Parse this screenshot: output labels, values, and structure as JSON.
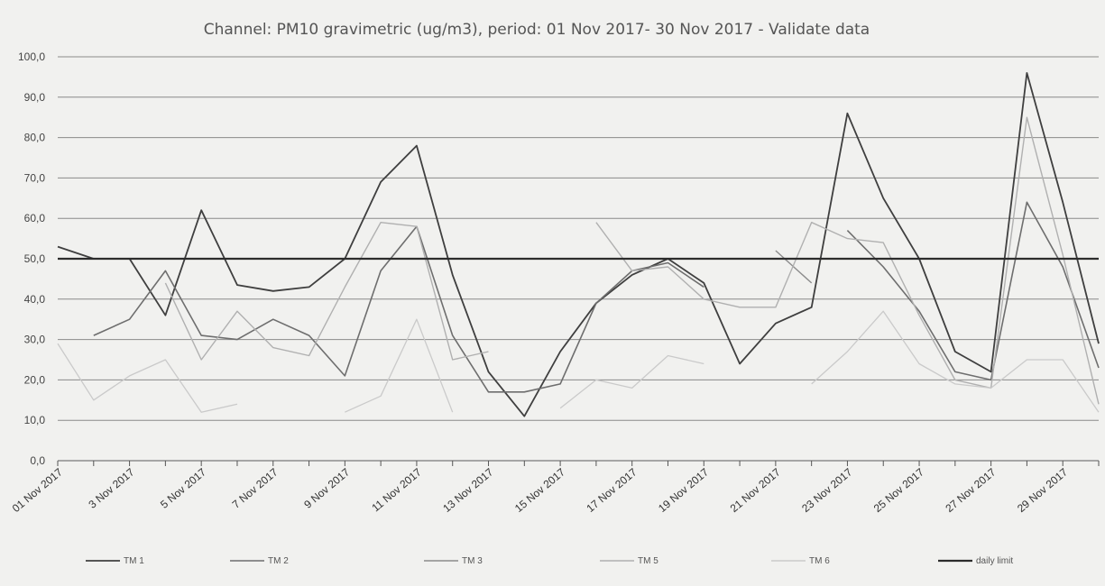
{
  "chart_data": {
    "type": "line",
    "title": "Channel: PM10 gravimetric (ug/m3), period: 01 Nov 2017- 30 Nov 2017 - Validate data",
    "xlabel": "",
    "ylabel": "",
    "ylim": [
      0,
      100
    ],
    "yticks": [
      "0,0",
      "10,0",
      "20,0",
      "30,0",
      "40,0",
      "50,0",
      "60,0",
      "70,0",
      "80,0",
      "90,0",
      "100,0"
    ],
    "x": [
      "01 Nov 2017",
      "02 Nov 2017",
      "03 Nov 2017",
      "04 Nov 2017",
      "05 Nov 2017",
      "06 Nov 2017",
      "07 Nov 2017",
      "08 Nov 2017",
      "09 Nov 2017",
      "10 Nov 2017",
      "11 Nov 2017",
      "12 Nov 2017",
      "13 Nov 2017",
      "14 Nov 2017",
      "15 Nov 2017",
      "16 Nov 2017",
      "17 Nov 2017",
      "18 Nov 2017",
      "19 Nov 2017",
      "20 Nov 2017",
      "21 Nov 2017",
      "22 Nov 2017",
      "23 Nov 2017",
      "24 Nov 2017",
      "25 Nov 2017",
      "26 Nov 2017",
      "27 Nov 2017",
      "28 Nov 2017",
      "29 Nov 2017",
      "30 Nov 2017"
    ],
    "xtick_labels": [
      "01 Nov 2017",
      "3 Nov 2017",
      "5 Nov 2017",
      "7 Nov 2017",
      "9 Nov 2017",
      "11 Nov 2017",
      "13 Nov 2017",
      "15 Nov 2017",
      "17 Nov 2017",
      "19 Nov 2017",
      "21 Nov 2017",
      "23 Nov 2017",
      "25 Nov 2017",
      "27 Nov 2017",
      "29 Nov 2017"
    ],
    "grid": true,
    "legend_position": "bottom",
    "series": [
      {
        "name": "TM 1",
        "color": "#3f3f3f",
        "width": 1.8,
        "values": [
          53,
          50,
          50,
          36,
          62,
          43.5,
          42,
          43,
          50,
          69,
          78,
          46,
          22,
          11,
          27,
          39,
          46,
          50,
          44,
          24,
          34,
          38,
          86,
          65,
          50,
          27,
          22,
          96,
          64,
          29
        ]
      },
      {
        "name": "TM 2",
        "color": "#6e6e6e",
        "width": 1.6,
        "values": [
          null,
          31,
          35,
          47,
          31,
          30,
          35,
          31,
          21,
          47,
          58,
          31,
          17,
          17,
          19,
          39,
          47,
          49,
          43,
          null,
          null,
          null,
          57,
          48,
          37,
          22,
          20,
          64,
          48,
          23
        ]
      },
      {
        "name": "TM 3",
        "color": "#8c8c8c",
        "width": 1.4,
        "values": [
          null,
          null,
          null,
          null,
          null,
          null,
          null,
          null,
          null,
          null,
          null,
          null,
          null,
          null,
          null,
          null,
          null,
          null,
          null,
          null,
          52,
          44,
          null,
          null,
          null,
          null,
          null,
          null,
          null,
          null
        ]
      },
      {
        "name": "TM 5",
        "color": "#b0b0b0",
        "width": 1.4,
        "values": [
          null,
          null,
          null,
          44,
          25,
          37,
          28,
          26,
          43,
          59,
          58,
          25,
          27,
          null,
          null,
          59,
          47,
          48,
          40,
          38,
          38,
          59,
          55,
          54,
          36,
          20,
          18,
          85,
          51,
          14
        ]
      },
      {
        "name": "TM 6",
        "color": "#cacaca",
        "width": 1.3,
        "values": [
          29,
          15,
          21,
          25,
          12,
          14,
          null,
          null,
          12,
          16,
          35,
          12,
          null,
          null,
          13,
          20,
          18,
          26,
          24,
          null,
          null,
          19,
          27,
          37,
          24,
          19,
          18,
          25,
          25,
          12
        ]
      },
      {
        "name": "daily limit",
        "color": "#2c2c2c",
        "width": 2.2,
        "values": [
          50,
          50,
          50,
          50,
          50,
          50,
          50,
          50,
          50,
          50,
          50,
          50,
          50,
          50,
          50,
          50,
          50,
          50,
          50,
          50,
          50,
          50,
          50,
          50,
          50,
          50,
          50,
          50,
          50,
          50
        ]
      }
    ]
  }
}
